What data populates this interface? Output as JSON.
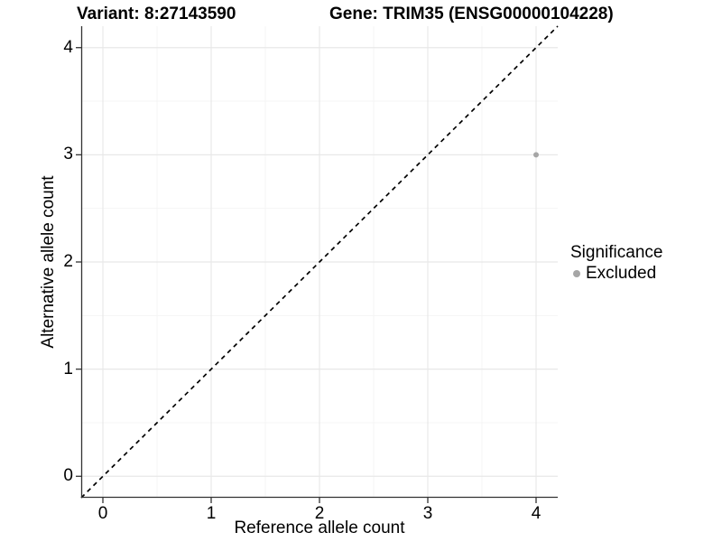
{
  "titles": {
    "variant": "Variant: 8:27143590",
    "gene": "Gene: TRIM35 (ENSG00000104228)"
  },
  "axes": {
    "x": {
      "label": "Reference allele count"
    },
    "y": {
      "label": "Alternative allele count"
    }
  },
  "legend": {
    "title": "Significance",
    "items": [
      {
        "label": "Excluded",
        "color": "#a6a6a6"
      }
    ]
  },
  "chart_data": {
    "type": "scatter",
    "title_left": "Variant: 8:27143590",
    "title_right": "Gene: TRIM35 (ENSG00000104228)",
    "xlabel": "Reference allele count",
    "ylabel": "Alternative allele count",
    "xlim": [
      -0.2,
      4.2
    ],
    "ylim": [
      -0.2,
      4.2
    ],
    "x_ticks": [
      0,
      1,
      2,
      3,
      4
    ],
    "y_ticks": [
      0,
      1,
      2,
      3,
      4
    ],
    "x_minor": [
      0.5,
      1.5,
      2.5,
      3.5
    ],
    "y_minor": [
      0.5,
      1.5,
      2.5,
      3.5
    ],
    "grid": true,
    "legend_position": "right",
    "reference_line": {
      "slope": 1,
      "intercept": 0,
      "style": "dashed",
      "color": "#000000"
    },
    "series": [
      {
        "name": "Excluded",
        "color": "#a6a6a6",
        "point_radius": 3,
        "points": [
          {
            "x": 4,
            "y": 3
          }
        ]
      }
    ]
  },
  "colors": {
    "background": "#ffffff",
    "axis_line": "#333333",
    "tick_mark": "#333333",
    "major_grid": "#e8e8e8",
    "minor_grid": "#f4f4f4",
    "text": "#000000"
  }
}
